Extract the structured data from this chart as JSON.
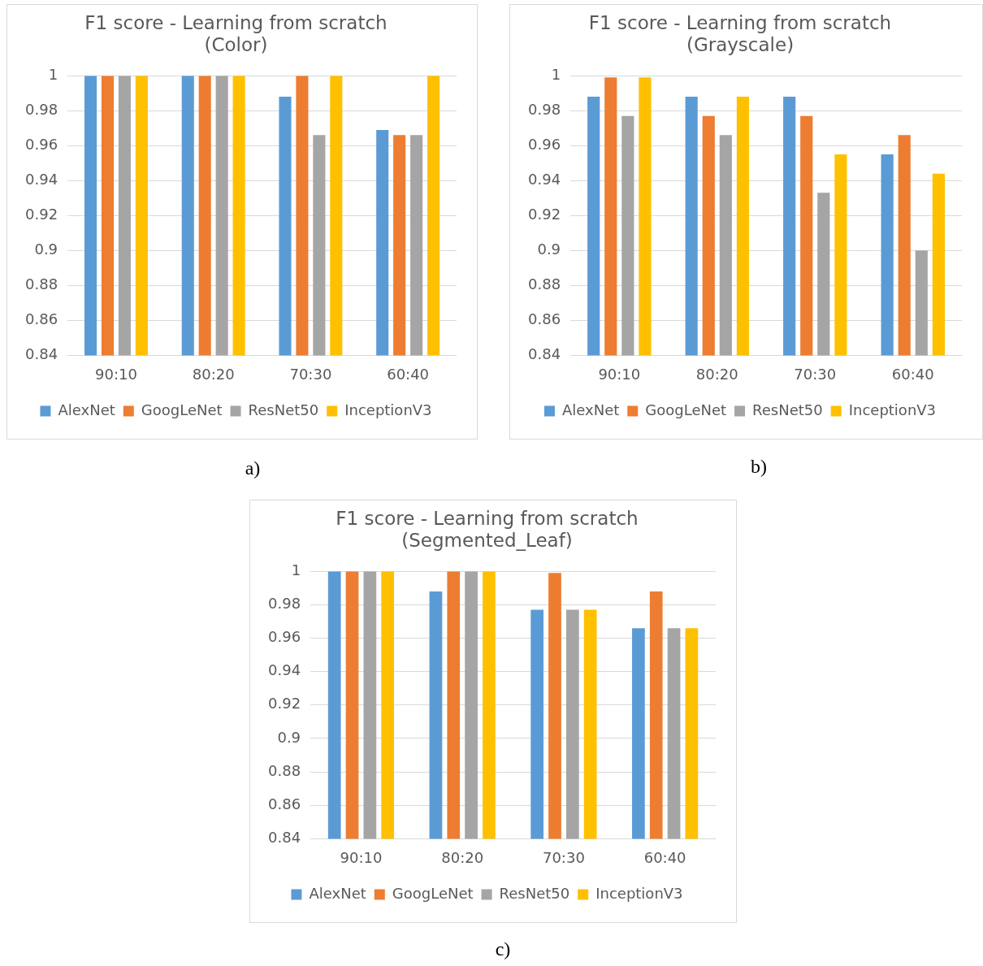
{
  "chart_data": [
    {
      "type": "bar",
      "title": [
        "F1 score - Learning from scratch",
        "(Color)"
      ],
      "categories": [
        "90:10",
        "80:20",
        "70:30",
        "60:40"
      ],
      "series": [
        {
          "name": "AlexNet",
          "color": "#5b9bd5",
          "values": [
            1,
            1,
            0.988,
            0.969
          ]
        },
        {
          "name": "GoogLeNet",
          "color": "#ed7d31",
          "values": [
            1,
            1,
            1,
            0.966
          ]
        },
        {
          "name": "ResNet50",
          "color": "#a5a5a5",
          "values": [
            1,
            1,
            0.966,
            0.966
          ]
        },
        {
          "name": "InceptionV3",
          "color": "#ffc000",
          "values": [
            1,
            1,
            1,
            1
          ]
        }
      ],
      "ylim": [
        0.84,
        1
      ],
      "yticks": [
        0.84,
        0.86,
        0.88,
        0.9,
        0.92,
        0.94,
        0.96,
        0.98,
        1
      ],
      "grid": "y",
      "legend": "bottom",
      "annotations": [
        "a)"
      ]
    },
    {
      "type": "bar",
      "title": [
        "F1 score - Learning from scratch",
        "(Grayscale)"
      ],
      "categories": [
        "90:10",
        "80:20",
        "70:30",
        "60:40"
      ],
      "series": [
        {
          "name": "AlexNet",
          "color": "#5b9bd5",
          "values": [
            0.988,
            0.988,
            0.988,
            0.955
          ]
        },
        {
          "name": "GoogLeNet",
          "color": "#ed7d31",
          "values": [
            0.999,
            0.977,
            0.977,
            0.966
          ]
        },
        {
          "name": "ResNet50",
          "color": "#a5a5a5",
          "values": [
            0.977,
            0.966,
            0.933,
            0.9
          ]
        },
        {
          "name": "InceptionV3",
          "color": "#ffc000",
          "values": [
            0.999,
            0.988,
            0.955,
            0.944
          ]
        }
      ],
      "ylim": [
        0.84,
        1
      ],
      "yticks": [
        0.84,
        0.86,
        0.88,
        0.9,
        0.92,
        0.94,
        0.96,
        0.98,
        1
      ],
      "grid": "y",
      "legend": "bottom",
      "annotations": [
        "b)"
      ]
    },
    {
      "type": "bar",
      "title": [
        "F1 score - Learning from scratch",
        "(Segmented_Leaf)"
      ],
      "categories": [
        "90:10",
        "80:20",
        "70:30",
        "60:40"
      ],
      "series": [
        {
          "name": "AlexNet",
          "color": "#5b9bd5",
          "values": [
            1,
            0.988,
            0.977,
            0.966
          ]
        },
        {
          "name": "GoogLeNet",
          "color": "#ed7d31",
          "values": [
            1,
            1,
            0.999,
            0.988
          ]
        },
        {
          "name": "ResNet50",
          "color": "#a5a5a5",
          "values": [
            1,
            1,
            0.977,
            0.966
          ]
        },
        {
          "name": "InceptionV3",
          "color": "#ffc000",
          "values": [
            1,
            1,
            0.977,
            0.966
          ]
        }
      ],
      "ylim": [
        0.84,
        1
      ],
      "yticks": [
        0.84,
        0.86,
        0.88,
        0.9,
        0.92,
        0.94,
        0.96,
        0.98,
        1
      ],
      "grid": "y",
      "legend": "bottom",
      "annotations": [
        "c)"
      ]
    }
  ]
}
